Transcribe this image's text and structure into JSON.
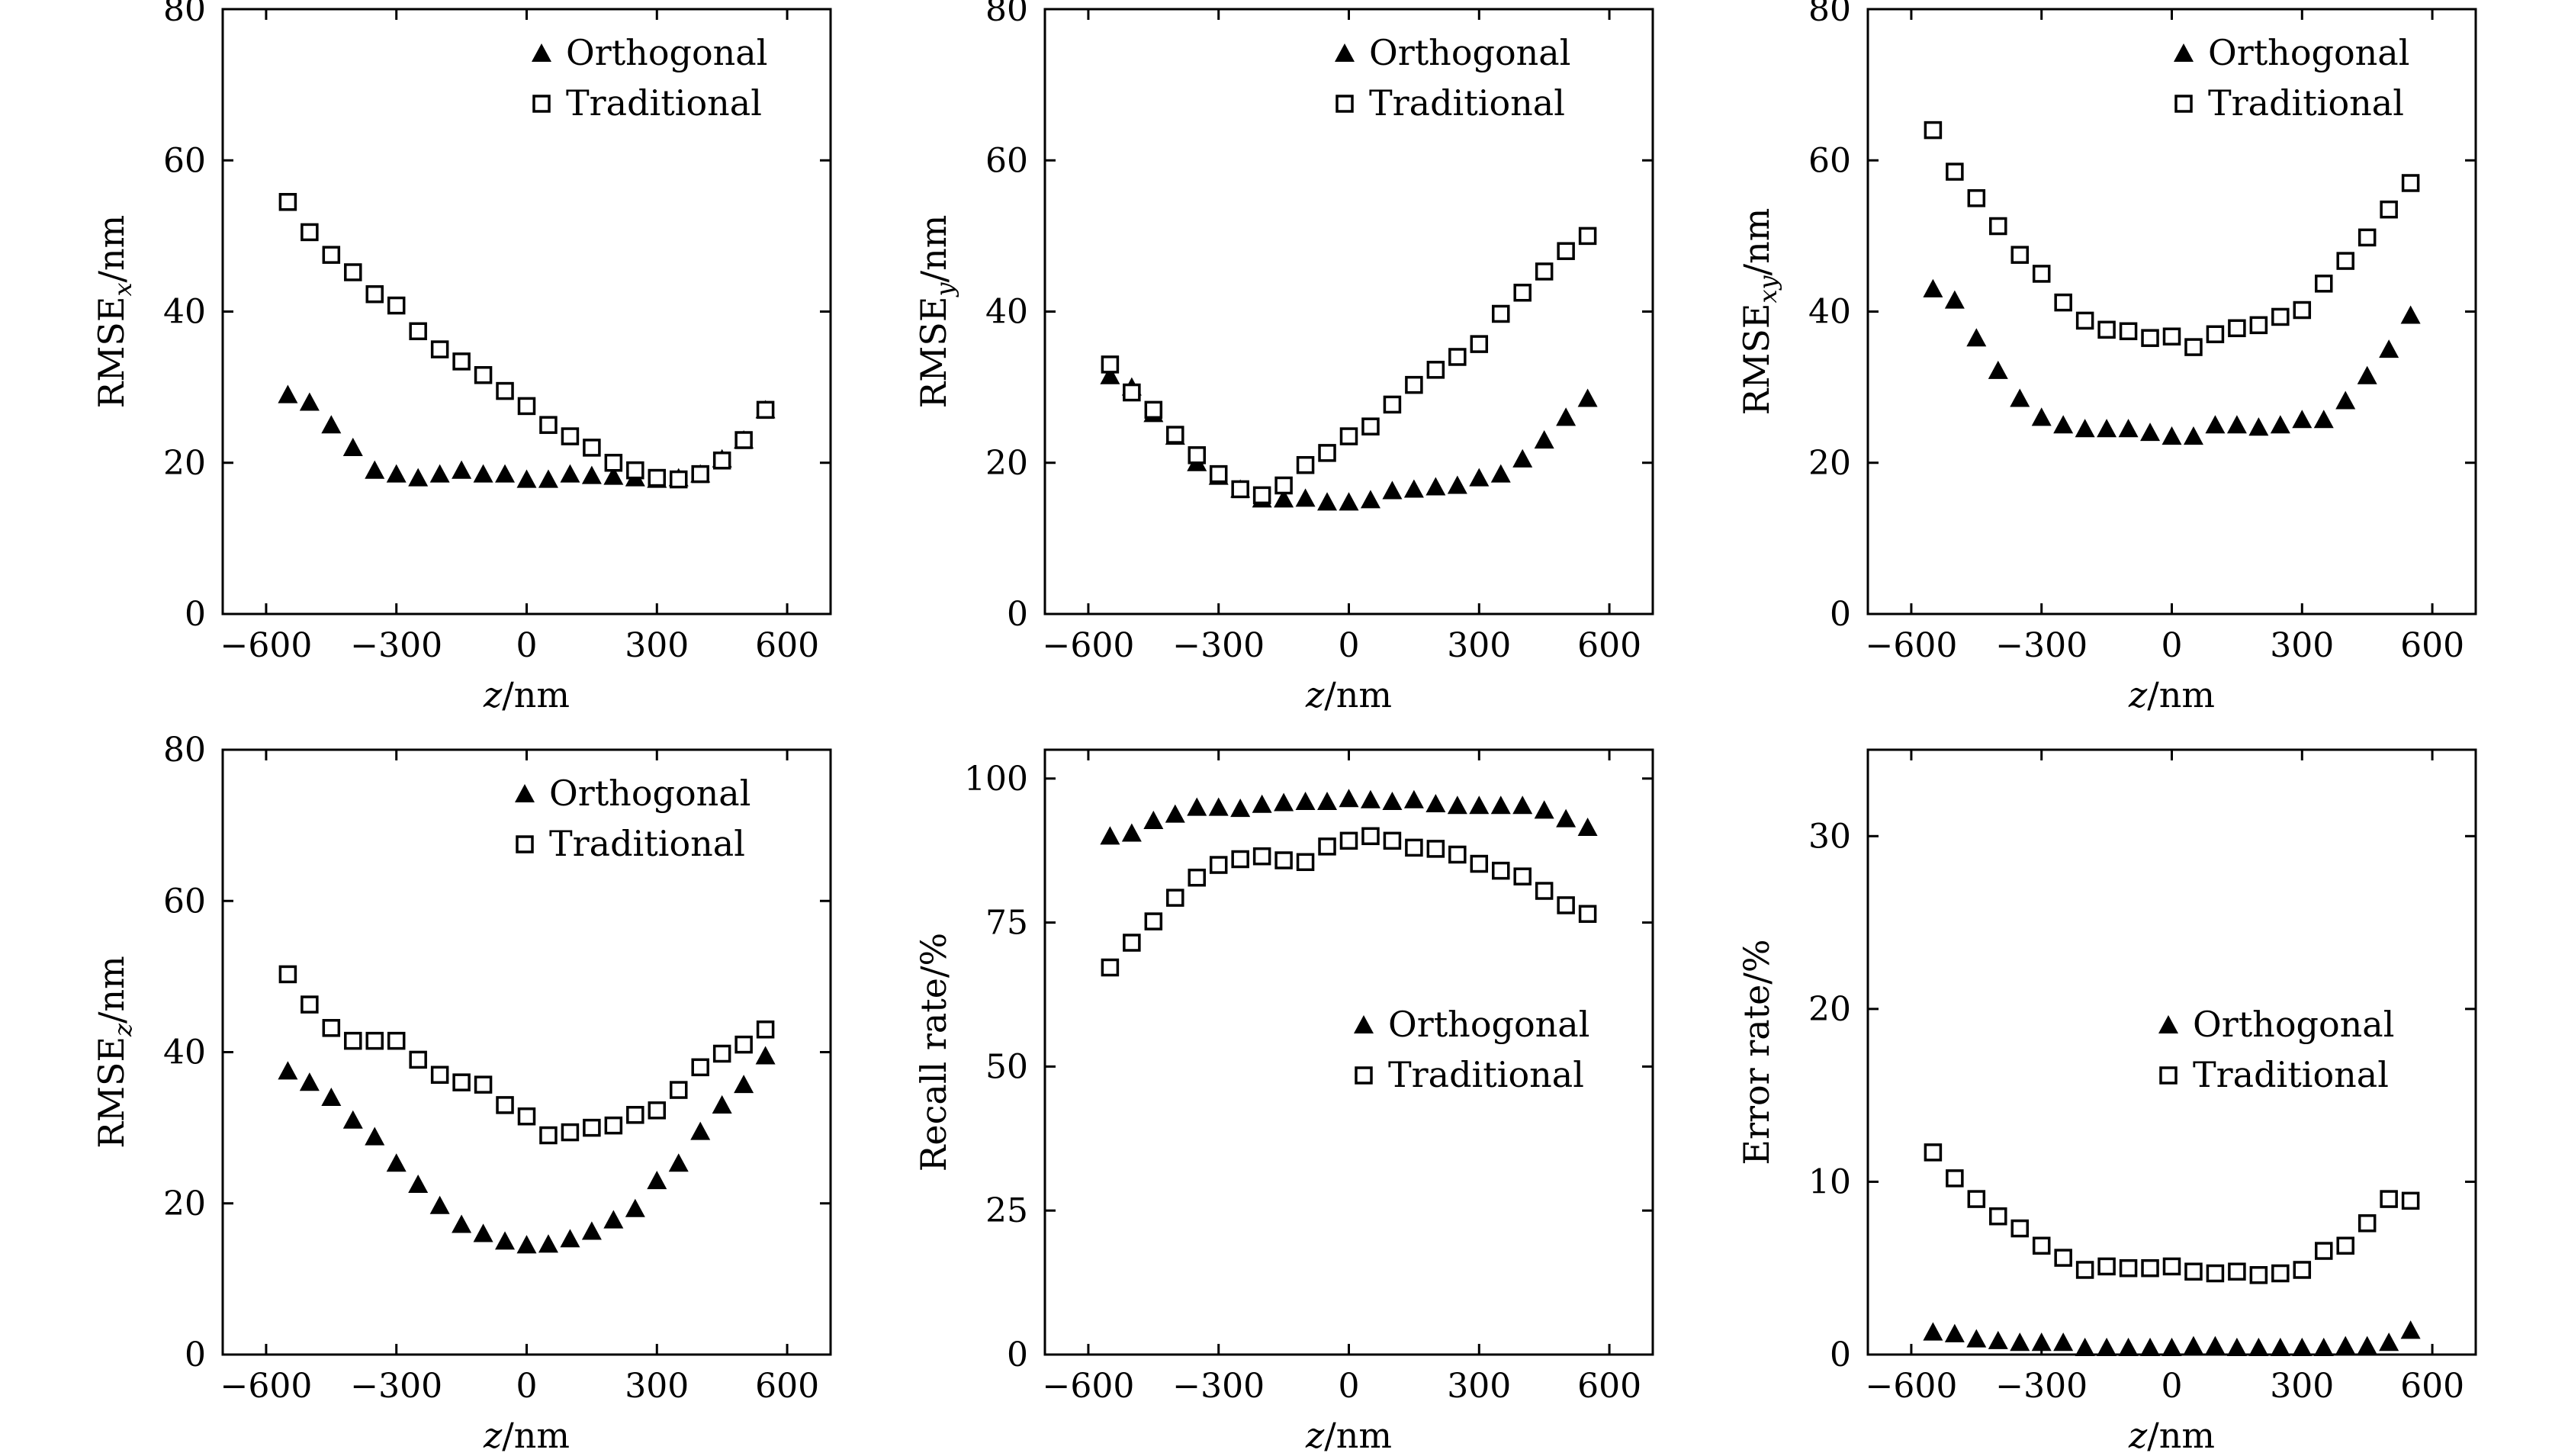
{
  "chart_data": [
    {
      "type": "scatter",
      "xlabel": {
        "var": "z",
        "unit": "/nm"
      },
      "ylabel": {
        "base": "RMSE",
        "sub": "x",
        "unit": "/nm"
      },
      "xlim": [
        -700,
        700
      ],
      "ylim": [
        0,
        80
      ],
      "xticks": [
        -600,
        -300,
        0,
        300,
        600
      ],
      "xtick_labels": [
        "−600",
        "−300",
        "0",
        "300",
        "600"
      ],
      "yticks": [
        0,
        20,
        40,
        60,
        80
      ],
      "ytick_labels": [
        "0",
        "20",
        "40",
        "60",
        "80"
      ],
      "legend_position": "top-right",
      "series": [
        {
          "name": "Orthogonal",
          "marker": "filled-triangle",
          "x": [
            -550,
            -500,
            -450,
            -400,
            -350,
            -300,
            -250,
            -200,
            -150,
            -100,
            -50,
            0,
            50,
            100,
            150,
            200,
            250,
            300,
            350,
            400,
            450,
            500,
            550
          ],
          "y": [
            29,
            28,
            25,
            22,
            19,
            18.5,
            18,
            18.5,
            19,
            18.5,
            18.5,
            17.8,
            17.8,
            18.5,
            18.3,
            18.2,
            18,
            17.8,
            18,
            18.5,
            20.5,
            23,
            27
          ]
        },
        {
          "name": "Traditional",
          "marker": "open-square",
          "x": [
            -550,
            -500,
            -450,
            -400,
            -350,
            -300,
            -250,
            -200,
            -150,
            -100,
            -50,
            0,
            50,
            100,
            150,
            200,
            250,
            300,
            350,
            400,
            450,
            500,
            550
          ],
          "y": [
            54.5,
            50.5,
            47.5,
            45.2,
            42.3,
            40.8,
            37.4,
            35,
            33.4,
            31.6,
            29.5,
            27.5,
            25,
            23.5,
            22,
            20,
            19,
            18,
            17.8,
            18.5,
            20.3,
            23,
            27
          ]
        }
      ]
    },
    {
      "type": "scatter",
      "xlabel": {
        "var": "z",
        "unit": "/nm"
      },
      "ylabel": {
        "base": "RMSE",
        "sub": "y",
        "unit": "/nm"
      },
      "xlim": [
        -700,
        700
      ],
      "ylim": [
        0,
        80
      ],
      "xticks": [
        -600,
        -300,
        0,
        300,
        600
      ],
      "xtick_labels": [
        "−600",
        "−300",
        "0",
        "300",
        "600"
      ],
      "yticks": [
        0,
        20,
        40,
        60,
        80
      ],
      "ytick_labels": [
        "0",
        "20",
        "40",
        "60",
        "80"
      ],
      "legend_position": "top-right",
      "series": [
        {
          "name": "Orthogonal",
          "marker": "filled-triangle",
          "x": [
            -550,
            -500,
            -450,
            -400,
            -350,
            -300,
            -250,
            -200,
            -150,
            -100,
            -50,
            0,
            50,
            100,
            150,
            200,
            250,
            300,
            350,
            400,
            450,
            500,
            550
          ],
          "y": [
            31.5,
            30,
            26.5,
            23.5,
            20,
            18.2,
            16.5,
            15.2,
            15.2,
            15.3,
            14.8,
            14.8,
            15.1,
            16.3,
            16.5,
            16.8,
            17,
            18,
            18.5,
            20.5,
            23,
            26,
            28.5
          ]
        },
        {
          "name": "Traditional",
          "marker": "open-square",
          "x": [
            -550,
            -500,
            -450,
            -400,
            -350,
            -300,
            -250,
            -200,
            -150,
            -100,
            -50,
            0,
            50,
            100,
            150,
            200,
            250,
            300,
            350,
            400,
            450,
            500,
            550
          ],
          "y": [
            33,
            29.3,
            27,
            23.7,
            21,
            18.5,
            16.5,
            15.7,
            17,
            19.7,
            21.3,
            23.5,
            24.8,
            27.7,
            30.3,
            32.3,
            34,
            35.7,
            39.7,
            42.5,
            45.3,
            48,
            50
          ]
        }
      ]
    },
    {
      "type": "scatter",
      "xlabel": {
        "var": "z",
        "unit": "/nm"
      },
      "ylabel": {
        "base": "RMSE",
        "sub": "xy",
        "unit": "/nm"
      },
      "xlim": [
        -700,
        700
      ],
      "ylim": [
        0,
        80
      ],
      "xticks": [
        -600,
        -300,
        0,
        300,
        600
      ],
      "xtick_labels": [
        "−600",
        "−300",
        "0",
        "300",
        "600"
      ],
      "yticks": [
        0,
        20,
        40,
        60,
        80
      ],
      "ytick_labels": [
        "0",
        "20",
        "40",
        "60",
        "80"
      ],
      "legend_position": "top-right",
      "series": [
        {
          "name": "Orthogonal",
          "marker": "filled-triangle",
          "x": [
            -550,
            -500,
            -450,
            -400,
            -350,
            -300,
            -250,
            -200,
            -150,
            -100,
            -50,
            0,
            50,
            100,
            150,
            200,
            250,
            300,
            350,
            400,
            450,
            500,
            550
          ],
          "y": [
            43,
            41.5,
            36.5,
            32.2,
            28.5,
            26,
            25,
            24.5,
            24.5,
            24.5,
            24,
            23.5,
            23.5,
            25,
            25,
            24.7,
            25,
            25.7,
            25.7,
            28.2,
            31.5,
            35,
            39.5
          ]
        },
        {
          "name": "Traditional",
          "marker": "open-square",
          "x": [
            -550,
            -500,
            -450,
            -400,
            -350,
            -300,
            -250,
            -200,
            -150,
            -100,
            -50,
            0,
            50,
            100,
            150,
            200,
            250,
            300,
            350,
            400,
            450,
            500,
            550
          ],
          "y": [
            64,
            58.5,
            55,
            51.3,
            47.5,
            45,
            41.2,
            38.8,
            37.6,
            37.4,
            36.5,
            36.7,
            35.3,
            37,
            37.8,
            38.2,
            39.3,
            40.2,
            43.7,
            46.7,
            49.8,
            53.5,
            57
          ]
        }
      ]
    },
    {
      "type": "scatter",
      "xlabel": {
        "var": "z",
        "unit": "/nm"
      },
      "ylabel": {
        "base": "RMSE",
        "sub": "z",
        "unit": "/nm"
      },
      "xlim": [
        -700,
        700
      ],
      "ylim": [
        0,
        80
      ],
      "xticks": [
        -600,
        -300,
        0,
        300,
        600
      ],
      "xtick_labels": [
        "−600",
        "−300",
        "0",
        "300",
        "600"
      ],
      "yticks": [
        0,
        20,
        40,
        60,
        80
      ],
      "ytick_labels": [
        "0",
        "20",
        "40",
        "60",
        "80"
      ],
      "legend_position": "top-right",
      "series": [
        {
          "name": "Orthogonal",
          "marker": "filled-triangle",
          "x": [
            -550,
            -500,
            -450,
            -400,
            -350,
            -300,
            -250,
            -200,
            -150,
            -100,
            -50,
            0,
            50,
            100,
            150,
            200,
            250,
            300,
            350,
            400,
            450,
            500,
            550
          ],
          "y": [
            37.5,
            36,
            34,
            31,
            28.8,
            25.3,
            22.5,
            19.7,
            17.2,
            16,
            15,
            14.5,
            14.6,
            15.3,
            16.3,
            17.8,
            19.3,
            23,
            25.3,
            29.5,
            33,
            35.7,
            39.5
          ]
        },
        {
          "name": "Traditional",
          "marker": "open-square",
          "x": [
            -550,
            -500,
            -450,
            -400,
            -350,
            -300,
            -250,
            -200,
            -150,
            -100,
            -50,
            0,
            50,
            100,
            150,
            200,
            250,
            300,
            350,
            400,
            450,
            500,
            550
          ],
          "y": [
            50.3,
            46.3,
            43.2,
            41.5,
            41.5,
            41.5,
            39,
            37,
            36,
            35.7,
            33,
            31.5,
            29,
            29.4,
            30,
            30.3,
            31.7,
            32.3,
            35,
            38,
            39.8,
            41,
            43
          ]
        }
      ]
    },
    {
      "type": "scatter",
      "xlabel": {
        "var": "z",
        "unit": "/nm"
      },
      "ylabel": {
        "base": "Recall rate",
        "sub": "",
        "unit": "/%"
      },
      "xlim": [
        -700,
        700
      ],
      "ylim": [
        0,
        105
      ],
      "xticks": [
        -600,
        -300,
        0,
        300,
        600
      ],
      "xtick_labels": [
        "−600",
        "−300",
        "0",
        "300",
        "600"
      ],
      "yticks": [
        0,
        25,
        50,
        75,
        100
      ],
      "ytick_labels": [
        "0",
        "25",
        "50",
        "75",
        "100"
      ],
      "legend_position": "center-right",
      "series": [
        {
          "name": "Orthogonal",
          "marker": "filled-triangle",
          "x": [
            -550,
            -500,
            -450,
            -400,
            -350,
            -300,
            -250,
            -200,
            -150,
            -100,
            -50,
            0,
            50,
            100,
            150,
            200,
            250,
            300,
            350,
            400,
            450,
            500,
            550
          ],
          "y": [
            90,
            90.5,
            92.7,
            93.8,
            95,
            95,
            94.8,
            95.5,
            95.8,
            96,
            96,
            96.5,
            96.3,
            96,
            96.3,
            95.6,
            95.3,
            95.3,
            95.3,
            95.3,
            94.5,
            93,
            91.5
          ]
        },
        {
          "name": "Traditional",
          "marker": "open-square",
          "x": [
            -550,
            -500,
            -450,
            -400,
            -350,
            -300,
            -250,
            -200,
            -150,
            -100,
            -50,
            0,
            50,
            100,
            150,
            200,
            250,
            300,
            350,
            400,
            450,
            500,
            550
          ],
          "y": [
            67.2,
            71.5,
            75.2,
            79.3,
            82.8,
            85,
            86,
            86.5,
            85.8,
            85.5,
            88.2,
            89.2,
            90,
            89.2,
            88,
            87.8,
            86.8,
            85.2,
            84,
            83,
            80.5,
            78,
            76.5
          ]
        }
      ]
    },
    {
      "type": "scatter",
      "xlabel": {
        "var": "z",
        "unit": "/nm"
      },
      "ylabel": {
        "base": "Error rate",
        "sub": "",
        "unit": "/%"
      },
      "xlim": [
        -700,
        700
      ],
      "ylim": [
        0,
        35
      ],
      "xticks": [
        -600,
        -300,
        0,
        300,
        600
      ],
      "xtick_labels": [
        "−600",
        "−300",
        "0",
        "300",
        "600"
      ],
      "yticks": [
        0,
        10,
        20,
        30
      ],
      "ytick_labels": [
        "0",
        "10",
        "20",
        "30"
      ],
      "legend_position": "center-right",
      "series": [
        {
          "name": "Orthogonal",
          "marker": "filled-triangle",
          "x": [
            -550,
            -500,
            -450,
            -400,
            -350,
            -300,
            -250,
            -200,
            -150,
            -100,
            -50,
            0,
            50,
            100,
            150,
            200,
            250,
            300,
            350,
            400,
            450,
            500,
            550
          ],
          "y": [
            1.3,
            1.2,
            0.9,
            0.8,
            0.7,
            0.7,
            0.7,
            0.4,
            0.4,
            0.4,
            0.4,
            0.4,
            0.5,
            0.5,
            0.4,
            0.4,
            0.4,
            0.4,
            0.4,
            0.5,
            0.5,
            0.7,
            1.4
          ]
        },
        {
          "name": "Traditional",
          "marker": "open-square",
          "x": [
            -550,
            -500,
            -450,
            -400,
            -350,
            -300,
            -250,
            -200,
            -150,
            -100,
            -50,
            0,
            50,
            100,
            150,
            200,
            250,
            300,
            350,
            400,
            450,
            500,
            550
          ],
          "y": [
            11.7,
            10.2,
            9,
            8,
            7.3,
            6.3,
            5.6,
            4.9,
            5.1,
            5,
            5,
            5.1,
            4.8,
            4.7,
            4.8,
            4.6,
            4.7,
            4.9,
            6,
            6.3,
            7.6,
            9,
            8.9
          ]
        }
      ]
    }
  ]
}
